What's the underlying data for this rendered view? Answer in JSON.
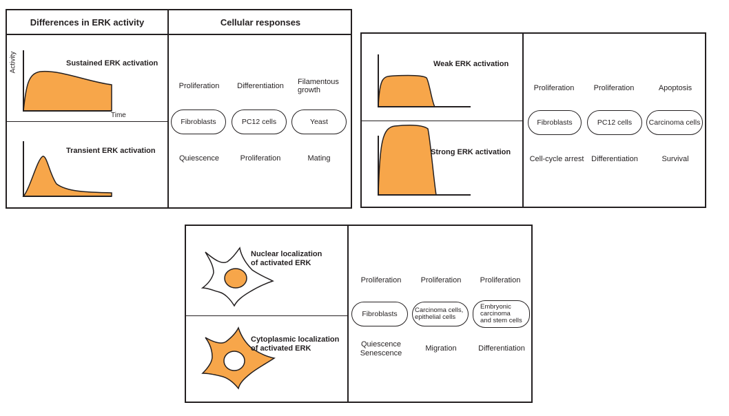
{
  "colors": {
    "fill": "#f7a64a",
    "line": "#231f20",
    "background": "#ffffff"
  },
  "panel_a": {
    "header_left": "Differences in ERK activity",
    "header_right": "Cellular responses",
    "axis_y": "Activity",
    "axis_x": "Time",
    "row1": {
      "label": "Sustained ERK activation",
      "responses": [
        "Proliferation",
        "Differentiation",
        "Filamentous growth"
      ],
      "responses_multiline": {
        "third_line1": "Filamentous",
        "third_line2": "growth"
      }
    },
    "cells": [
      "Fibroblasts",
      "PC12 cells",
      "Yeast"
    ],
    "row2": {
      "label": "Transient ERK activation",
      "responses": [
        "Quiescence",
        "Proliferation",
        "Mating"
      ]
    }
  },
  "panel_b": {
    "row1": {
      "label": "Weak ERK activation",
      "responses": [
        "Proliferation",
        "Proliferation",
        "Apoptosis"
      ]
    },
    "cells": [
      "Fibroblasts",
      "PC12 cells",
      "Carcinoma cells"
    ],
    "row2": {
      "label": "Strong ERK activation",
      "responses": [
        "Cell-cycle arrest",
        "Differentiation",
        "Survival"
      ]
    }
  },
  "panel_c": {
    "row1": {
      "label_line1": "Nuclear localization",
      "label_line2": "of activated ERK",
      "responses": [
        "Proliferation",
        "Proliferation",
        "Proliferation"
      ]
    },
    "cells": {
      "c1": "Fibroblasts",
      "c2_line1": "Carcinoma cells,",
      "c2_line2": "epithelial cells",
      "c3_line1": "Embryonic",
      "c3_line2": "carcinoma",
      "c3_line3": "and stem cells"
    },
    "row2": {
      "label_line1": "Cytoplasmic localization",
      "label_line2": "of activated ERK",
      "r1_line1": "Quiescence",
      "r1_line2": "Senescence",
      "r2": "Migration",
      "r3": "Differentiation"
    }
  }
}
